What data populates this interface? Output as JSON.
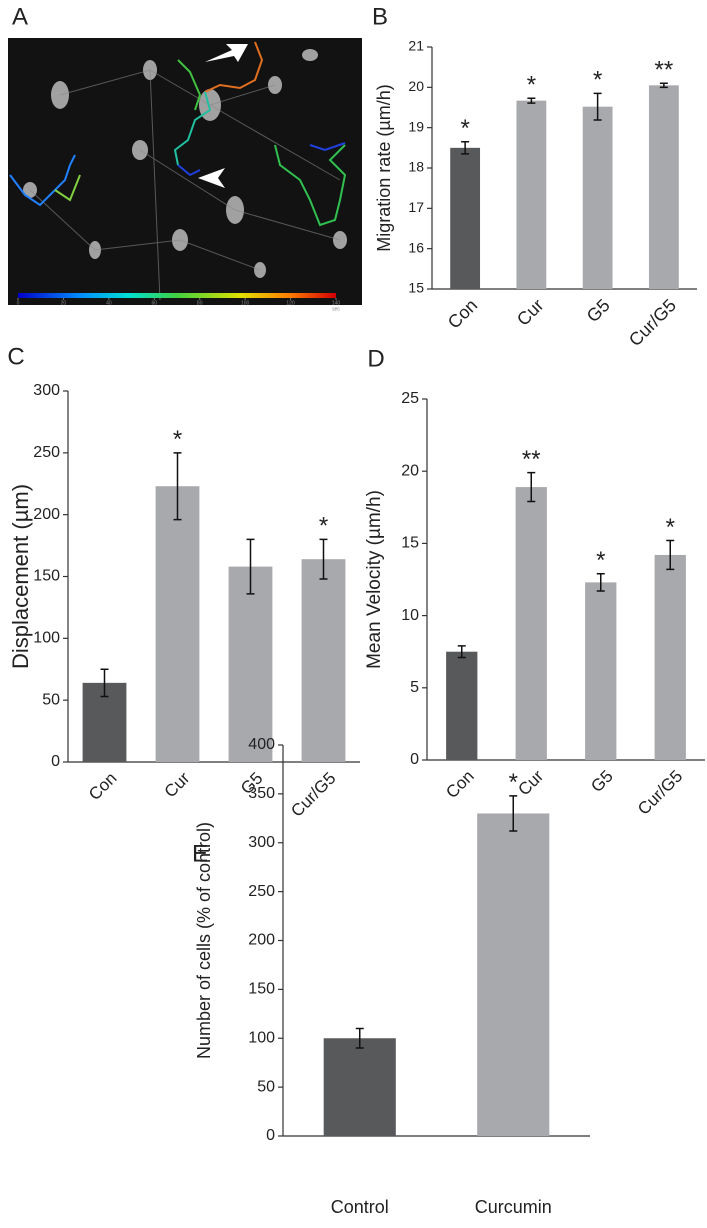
{
  "chart_data": [
    {
      "type": "image",
      "panel": "A",
      "colorbar_ticks": [
        0,
        20,
        40,
        60,
        80,
        100,
        120,
        140
      ],
      "colorbar_unit": "sec"
    },
    {
      "type": "bar",
      "panel": "B",
      "y_label": "Migration rate (µm/h)",
      "categories": [
        "Con",
        "Cur",
        "G5",
        "Cur/G5"
      ],
      "values": [
        18.5,
        19.67,
        19.52,
        20.05
      ],
      "errors": [
        0.15,
        0.06,
        0.33,
        0.05
      ],
      "annotations": [
        "*",
        "*",
        "*",
        "**"
      ],
      "colors": [
        "#58595b",
        "#a7a9ac",
        "#a7a9ac",
        "#a7a9ac"
      ],
      "ylim": [
        15,
        21
      ],
      "yticks": [
        15,
        16,
        17,
        18,
        19,
        20,
        21
      ]
    },
    {
      "type": "bar",
      "panel": "C",
      "y_label": "Displacement (µm)",
      "categories": [
        "Con",
        "Cur",
        "G5",
        "Cur/G5"
      ],
      "values": [
        64,
        223,
        158,
        164
      ],
      "errors": [
        11,
        27,
        22,
        16
      ],
      "annotations": [
        null,
        "*",
        null,
        "*"
      ],
      "colors": [
        "#58595b",
        "#a7a9ac",
        "#a7a9ac",
        "#a7a9ac"
      ],
      "ylim": [
        0,
        300
      ],
      "yticks": [
        0,
        50,
        100,
        150,
        200,
        250,
        300
      ]
    },
    {
      "type": "bar",
      "panel": "D",
      "y_label": "Mean Velocity (µm/h)",
      "categories": [
        "Con",
        "Cur",
        "G5",
        "Cur/G5"
      ],
      "values": [
        7.5,
        18.9,
        12.3,
        14.2
      ],
      "errors": [
        0.4,
        1.0,
        0.6,
        1.0
      ],
      "annotations": [
        null,
        "**",
        "*",
        "*"
      ],
      "colors": [
        "#58595b",
        "#a7a9ac",
        "#a7a9ac",
        "#a7a9ac"
      ],
      "ylim": [
        0,
        25
      ],
      "yticks": [
        0,
        5,
        10,
        15,
        20,
        25
      ]
    },
    {
      "type": "bar",
      "panel": "E",
      "y_label": "Number of cells (% of control)",
      "categories": [
        "Control",
        "Curcumin"
      ],
      "values": [
        100,
        330
      ],
      "errors": [
        10,
        18
      ],
      "annotations": [
        null,
        "*"
      ],
      "colors": [
        "#58595b",
        "#a7a9ac"
      ],
      "ylim": [
        0,
        400
      ],
      "yticks": [
        0,
        50,
        100,
        150,
        200,
        250,
        300,
        350,
        400
      ]
    }
  ]
}
